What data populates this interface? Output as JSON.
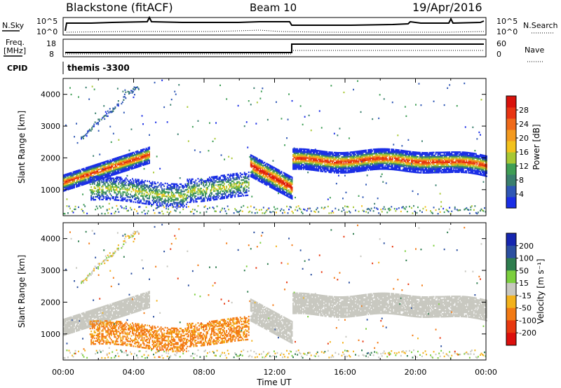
{
  "header": {
    "station": "Blackstone (fitACF)",
    "beam": "Beam 10",
    "date": "19/Apr/2016"
  },
  "top_panels": {
    "nsky_label": "N.Sky",
    "nsearch_label": "N.Search",
    "noise_ticks": [
      "10^5",
      "10^0"
    ],
    "freq_label_1": "Freq.",
    "freq_label_2": "[MHz]",
    "freq_ticks": [
      "18",
      "8"
    ],
    "nave_label": "Nave",
    "nave_ticks": [
      "60",
      "0"
    ],
    "cpid_label": "CPID",
    "cpid_value": "themis -3300"
  },
  "x_axis": {
    "label": "Time UT",
    "ticks": [
      "00:00",
      "04:00",
      "08:00",
      "12:00",
      "16:00",
      "20:00",
      "00:00"
    ]
  },
  "chart_data": [
    {
      "type": "heatmap",
      "name": "power",
      "ylabel": "Slant Range [km]",
      "yticks": [
        "1000",
        "2000",
        "3000",
        "4000"
      ],
      "colorbar_label": "Power [dB]",
      "colorbar_ticks": [
        "4",
        "8",
        "12",
        "16",
        "20",
        "24",
        "28"
      ],
      "colorbar_colors": [
        "#1a2ee6",
        "#2f57b5",
        "#3a7f6e",
        "#3f9e55",
        "#a8c834",
        "#f3c21c",
        "#f39a1f",
        "#ef6a1a",
        "#e83412",
        "#d9120c"
      ],
      "xlim": [
        0,
        24
      ],
      "ylim": [
        180,
        4500
      ],
      "features": [
        {
          "t0": 0.0,
          "t1": 4.9,
          "r0": 1150,
          "r1": 2200,
          "kind": "band-rising"
        },
        {
          "t0": 1.5,
          "t1": 10.5,
          "r0": 600,
          "r1": 1500,
          "kind": "echo-patch"
        },
        {
          "t0": 10.6,
          "t1": 13.0,
          "r0": 1100,
          "r1": 2400,
          "kind": "dropping-arc"
        },
        {
          "t0": 13.0,
          "t1": 24.0,
          "r0": 1500,
          "r1": 2300,
          "kind": "steady-band"
        }
      ]
    },
    {
      "type": "heatmap",
      "name": "velocity",
      "ylabel": "Slant Range [km]",
      "yticks": [
        "1000",
        "2000",
        "3000",
        "4000"
      ],
      "colorbar_label": "Velocity [m s⁻¹]",
      "colorbar_ticks": [
        "200",
        "100",
        "50",
        "15",
        "-15",
        "-50",
        "-100",
        "-200"
      ],
      "colorbar_colors": [
        "#1626b0",
        "#2b4fa0",
        "#2e7d4e",
        "#7ccf3e",
        "#c8c8c0",
        "#f3b21c",
        "#f37a14",
        "#e8380f",
        "#dc0f0c"
      ],
      "xlim": [
        0,
        24
      ],
      "ylim": [
        180,
        4500
      ]
    }
  ]
}
